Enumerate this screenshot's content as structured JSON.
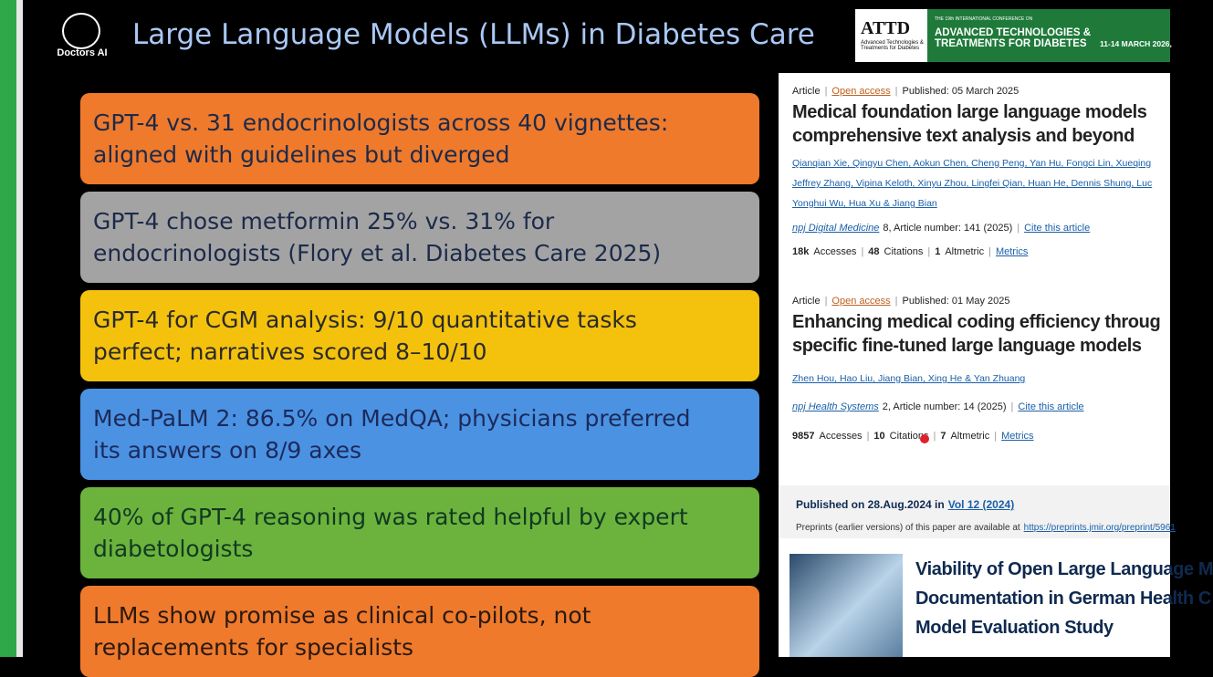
{
  "header": {
    "logo_text": "Doctors AI",
    "title": "Large Language Models (LLMs) in Diabetes Care",
    "banner": {
      "logo": "ATTD",
      "logo_sub": "Advanced Technologies & Treatments for Diabetes",
      "kicker": "THE 19th INTERNATIONAL CONFERENCE ON",
      "name": "ADVANCED TECHNOLOGIES & TREATMENTS FOR DIABETES",
      "dates": "11-14 MARCH 2026,"
    }
  },
  "boxes": [
    {
      "lines": [
        "GPT-4 vs. 31 endocrinologists across 40 vignettes:",
        "aligned with guidelines but diverged"
      ]
    },
    {
      "lines": [
        "GPT-4 chose metformin 25% vs. 31% for",
        "endocrinologists (Flory et al. Diabetes Care 2025)"
      ]
    },
    {
      "lines": [
        "GPT-4 for CGM analysis: 9/10 quantitative tasks",
        "perfect; narratives scored 8–10/10"
      ]
    },
    {
      "lines": [
        "Med-PaLM 2: 86.5% on MedQA; physicians preferred",
        "its answers on 8/9 axes"
      ]
    },
    {
      "lines": [
        "40% of GPT-4 reasoning was rated helpful by expert",
        "diabetologists"
      ]
    },
    {
      "lines": [
        "LLMs show promise as clinical co-pilots, not",
        "replacements for specialists"
      ]
    }
  ],
  "articles": [
    {
      "type": "Article",
      "access": "Open access",
      "published": "Published: 05 March 2025",
      "title": [
        "Medical foundation large language models",
        "comprehensive text analysis and beyond"
      ],
      "authors": [
        "Qianqian Xie, Qingyu Chen, Aokun Chen, Cheng Peng, Yan Hu, Fongci Lin, Xueqing",
        "Jeffrey Zhang, Vipina Keloth, Xinyu Zhou, Lingfei Qian, Huan He, Dennis Shung, Luc",
        "Yonghui Wu, Hua Xu & Jiang Bian"
      ],
      "journal": "npj Digital Medicine",
      "number": "8, Article number: 141 (2025)",
      "cite": "Cite this article",
      "metrics": [
        [
          "18k",
          "Accesses"
        ],
        [
          "48",
          "Citations"
        ],
        [
          "1",
          "Altmetric"
        ]
      ],
      "metrics_link": "Metrics"
    },
    {
      "type": "Article",
      "access": "Open access",
      "published": "Published: 01 May 2025",
      "title": [
        "Enhancing medical coding efficiency throug",
        "specific fine-tuned large language models"
      ],
      "authors": [
        "Zhen Hou, Hao Liu, Jiang Bian, Xing He & Yan Zhuang"
      ],
      "journal": "npj Health Systems",
      "number": "2, Article number: 14 (2025)",
      "cite": "Cite this article",
      "metrics": [
        [
          "9857",
          "Accesses"
        ],
        [
          "10",
          "Citations"
        ],
        [
          "7",
          "Altmetric"
        ]
      ],
      "metrics_link": "Metrics"
    }
  ],
  "jmir": {
    "published": "Published on 28.Aug.2024 in",
    "volume": "Vol 12 (2024)",
    "preprints": "Preprints (earlier versions) of this paper are available at",
    "url": "https://preprints.jmir.org/preprint/5961",
    "title": [
      "Viability of Open Large Language M",
      "Documentation in German Health C",
      "Model Evaluation Study"
    ]
  }
}
